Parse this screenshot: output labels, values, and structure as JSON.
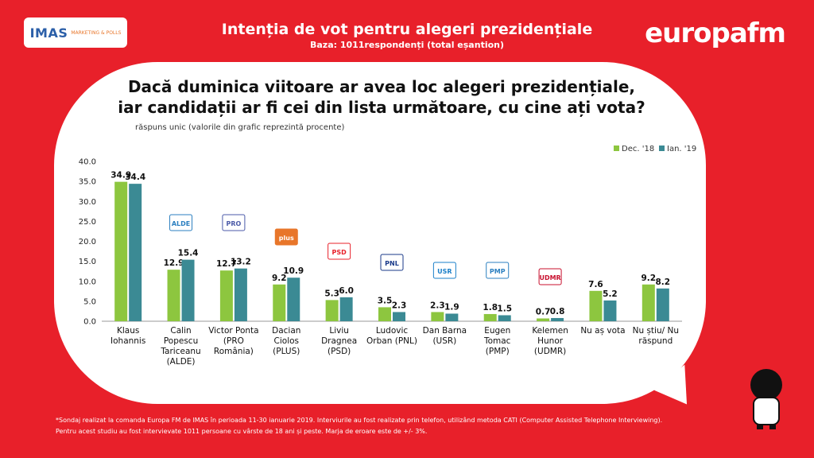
{
  "header": {
    "title": "Intenția de vot pentru alegeri prezidențiale",
    "subtitle": "Baza: 1011respondenți (total eșantion)"
  },
  "brand": {
    "imas": "IMAS",
    "imas_tag": "MARKETING & POLLS",
    "europa": "europafm"
  },
  "question": {
    "line1": "Dacă duminica viitoare ar avea loc alegeri prezidențiale,",
    "line2": "iar candidații ar fi cei din lista următoare, cu cine ați vota?"
  },
  "note": "răspuns unic (valorile din grafic reprezintă procente)",
  "footnote": {
    "line1": "*Sondaj realizat la comanda Europa FM de IMAS în perioada 11-30 ianuarie 2019. Interviurile au fost realizate prin telefon, utilizând metoda CATI (Computer Assisted Telephone Interviewing).",
    "line2": "Pentru acest studiu au fost intervievate 1011 persoane cu vârste de 18 ani și peste. Marja de eroare este de +/- 3%."
  },
  "party_logos": [
    "ALDE",
    "PRO",
    "plus",
    "PSD",
    "PNL",
    "USR",
    "PMP",
    "UDMR"
  ],
  "colors": {
    "background": "#e8202a",
    "series1": "#8dc63f",
    "series2": "#3b8a94"
  },
  "chart_data": {
    "type": "bar",
    "categories": [
      [
        "Klaus",
        "Iohannis"
      ],
      [
        "Calin",
        "Popescu",
        "Tariceanu",
        "(ALDE)"
      ],
      [
        "Victor Ponta",
        "(PRO",
        "România)"
      ],
      [
        "Dacian",
        "Ciolos",
        "(PLUS)"
      ],
      [
        "Liviu",
        "Dragnea",
        "(PSD)"
      ],
      [
        "Ludovic",
        "Orban (PNL)"
      ],
      [
        "Dan Barna",
        "(USR)"
      ],
      [
        "Eugen",
        "Tomac",
        "(PMP)"
      ],
      [
        "Kelemen",
        "Hunor",
        "(UDMR)"
      ],
      [
        "Nu aș vota"
      ],
      [
        "Nu știu/ Nu",
        "răspund"
      ]
    ],
    "series": [
      {
        "name": "Dec. '18",
        "values": [
          34.9,
          12.9,
          12.7,
          9.2,
          5.3,
          3.5,
          2.3,
          1.8,
          0.7,
          7.6,
          9.2
        ]
      },
      {
        "name": "Ian. '19",
        "values": [
          34.4,
          15.4,
          13.2,
          10.9,
          6.0,
          2.3,
          1.9,
          1.5,
          0.8,
          5.2,
          8.2
        ]
      }
    ],
    "ylim": [
      0,
      40
    ],
    "yticks": [
      "0.0",
      "5.0",
      "10.0",
      "15.0",
      "20.0",
      "25.0",
      "30.0",
      "35.0",
      "40.0"
    ],
    "legend": "top-right",
    "grid": false
  }
}
